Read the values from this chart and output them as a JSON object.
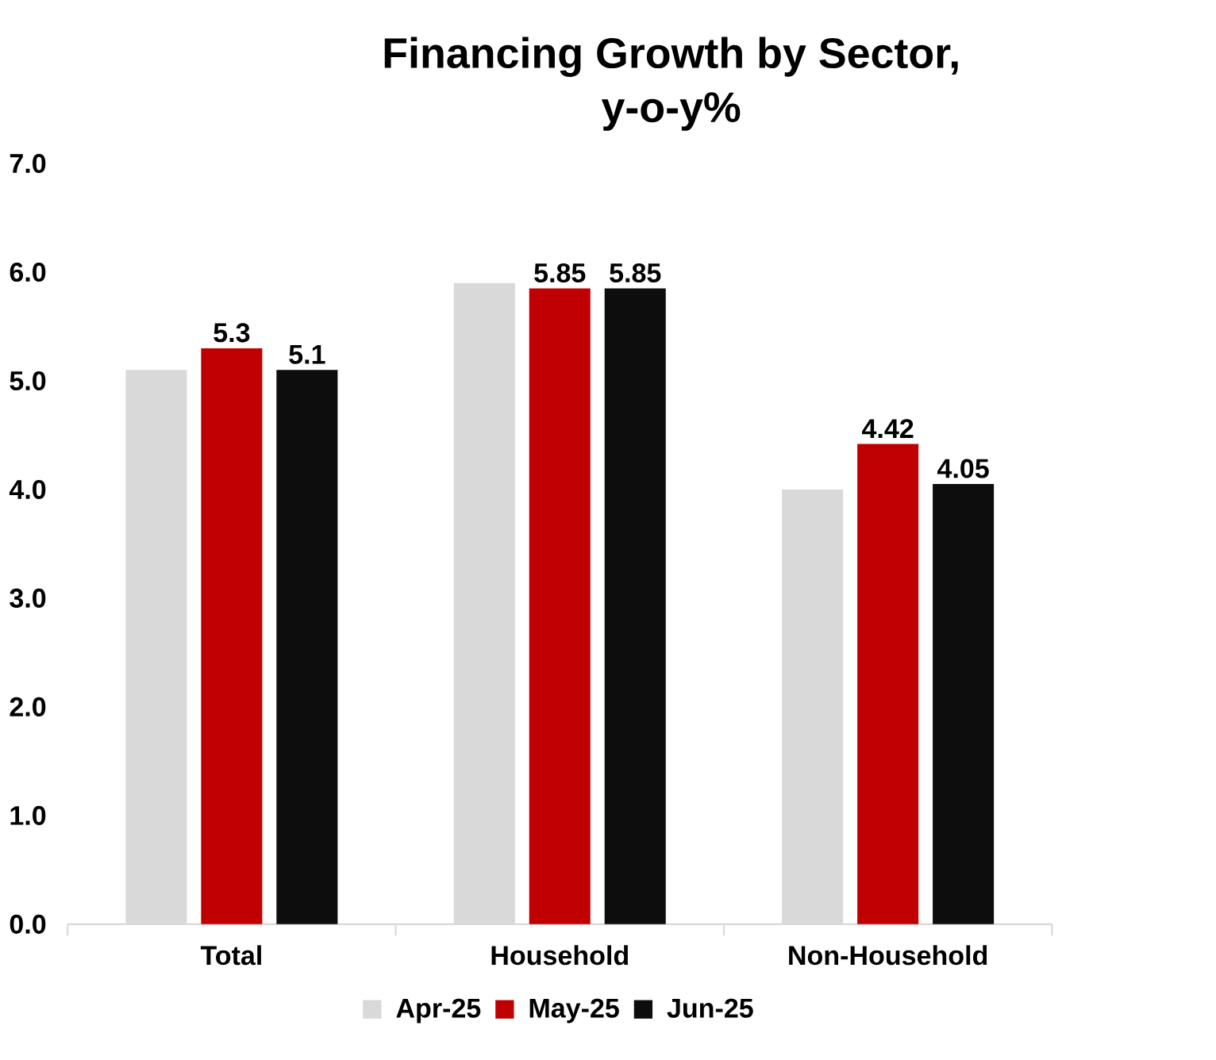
{
  "chart_data": {
    "type": "bar",
    "title": "Financing Growth by Sector,\ny-o-y%",
    "categories": [
      "Total",
      "Household",
      "Non-Household"
    ],
    "series": [
      {
        "name": "Apr-25",
        "color": "#d9d9d9",
        "values": [
          5.1,
          5.9,
          4.0
        ],
        "value_labels": [
          null,
          null,
          null
        ]
      },
      {
        "name": "May-25",
        "color": "#c00000",
        "values": [
          5.3,
          5.85,
          4.42
        ],
        "value_labels": [
          "5.3",
          "5.85",
          "4.42"
        ]
      },
      {
        "name": "Jun-25",
        "color": "#0d0d0d",
        "values": [
          5.1,
          5.85,
          4.05
        ],
        "value_labels": [
          "5.1",
          "5.85",
          "4.05"
        ]
      }
    ],
    "ylim": [
      0,
      7
    ],
    "yticks": [
      {
        "value": 0,
        "label": "0.0"
      },
      {
        "value": 1,
        "label": "1.0"
      },
      {
        "value": 2,
        "label": "2.0"
      },
      {
        "value": 3,
        "label": "3.0"
      },
      {
        "value": 4,
        "label": "4.0"
      },
      {
        "value": 5,
        "label": "5.0"
      },
      {
        "value": 6,
        "label": "6.0"
      },
      {
        "value": 7,
        "label": "7.0"
      }
    ],
    "grid": false,
    "legend": "bottom"
  }
}
